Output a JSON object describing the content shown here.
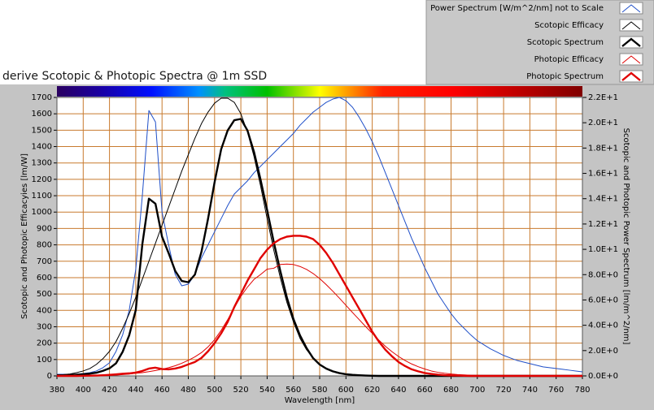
{
  "chart_data": {
    "type": "line",
    "title": "derive Scotopic & Photopic Spectra @ 1m SSD",
    "x_label": "Wavelength [nm]",
    "y_label": "Scotopic and Photopic Efficacyies [lm/W]",
    "y2_label": "Scotopic and Photopic Power Spectrum [lm/m^2/nm]",
    "xlim": [
      380,
      780
    ],
    "xticks": [
      380,
      400,
      420,
      440,
      460,
      480,
      500,
      520,
      540,
      560,
      580,
      600,
      620,
      640,
      660,
      680,
      700,
      720,
      740,
      760,
      780
    ],
    "ylim": [
      0,
      1700
    ],
    "yticks": [
      0,
      100,
      200,
      300,
      400,
      500,
      600,
      700,
      800,
      900,
      1000,
      1100,
      1200,
      1300,
      1400,
      1500,
      1600,
      1700
    ],
    "y2lim": [
      0,
      22
    ],
    "y2ticks": [
      {
        "value": 0,
        "label": "0.0E+0"
      },
      {
        "value": 2,
        "label": "2.0E+0"
      },
      {
        "value": 4,
        "label": "4.0E+0"
      },
      {
        "value": 6,
        "label": "6.0E+0"
      },
      {
        "value": 8,
        "label": "8.0E+0"
      },
      {
        "value": 10,
        "label": "1.0E+1"
      },
      {
        "value": 12,
        "label": "1.2E+1"
      },
      {
        "value": 14,
        "label": "1.4E+1"
      },
      {
        "value": 16,
        "label": "1.6E+1"
      },
      {
        "value": 18,
        "label": "1.8E+1"
      },
      {
        "value": 20,
        "label": "2.0E+1"
      },
      {
        "value": 22,
        "label": "2.2E+1"
      }
    ],
    "grid": true,
    "legend": "top-right",
    "x": [
      380,
      385,
      390,
      395,
      400,
      405,
      410,
      415,
      420,
      425,
      430,
      435,
      440,
      445,
      450,
      455,
      460,
      465,
      470,
      475,
      480,
      485,
      490,
      495,
      500,
      505,
      510,
      515,
      520,
      525,
      530,
      535,
      540,
      545,
      550,
      555,
      560,
      565,
      570,
      575,
      580,
      585,
      590,
      595,
      600,
      605,
      610,
      615,
      620,
      625,
      630,
      635,
      640,
      645,
      650,
      655,
      660,
      665,
      670,
      675,
      680,
      685,
      690,
      695,
      700,
      705,
      710,
      715,
      720,
      725,
      730,
      735,
      740,
      745,
      750,
      755,
      760,
      765,
      770,
      775,
      780
    ],
    "series": [
      {
        "name": "Power Spectrum [W/m^2/nm] not to Scale",
        "color": "#1f4fc8",
        "values": [
          10,
          10,
          10,
          10,
          15,
          20,
          30,
          50,
          80,
          150,
          250,
          400,
          650,
          1100,
          1620,
          1550,
          1000,
          800,
          620,
          550,
          560,
          620,
          720,
          800,
          880,
          960,
          1040,
          1110,
          1150,
          1190,
          1240,
          1280,
          1320,
          1360,
          1400,
          1440,
          1480,
          1530,
          1570,
          1610,
          1640,
          1670,
          1690,
          1700,
          1680,
          1640,
          1580,
          1510,
          1430,
          1340,
          1240,
          1140,
          1040,
          940,
          840,
          750,
          660,
          580,
          500,
          440,
          380,
          330,
          290,
          250,
          215,
          190,
          165,
          145,
          125,
          110,
          95,
          85,
          75,
          65,
          55,
          50,
          45,
          40,
          35,
          30,
          25
        ]
      },
      {
        "name": "Scotopic Efficacy",
        "color": "#000000",
        "values": [
          5,
          8,
          12,
          20,
          30,
          45,
          70,
          105,
          150,
          210,
          290,
          380,
          480,
          590,
          700,
          810,
          920,
          1030,
          1140,
          1250,
          1350,
          1450,
          1540,
          1610,
          1665,
          1695,
          1695,
          1670,
          1600,
          1490,
          1340,
          1160,
          960,
          770,
          600,
          450,
          330,
          230,
          160,
          110,
          70,
          45,
          30,
          20,
          12,
          8,
          5,
          3,
          2,
          1,
          1,
          0,
          0,
          0,
          0,
          0,
          0,
          0,
          0,
          0,
          0,
          0,
          0,
          0,
          0,
          0,
          0,
          0,
          0,
          0,
          0,
          0,
          0,
          0,
          0,
          0,
          0,
          0,
          0,
          0,
          0
        ]
      },
      {
        "name": "Scotopic Spectrum",
        "color": "#000000",
        "axis": "y2",
        "values": [
          0.05,
          0.05,
          0.07,
          0.1,
          0.13,
          0.18,
          0.25,
          0.4,
          0.6,
          1.0,
          1.9,
          3.2,
          5.2,
          10.4,
          14.0,
          13.6,
          11.0,
          9.7,
          8.3,
          7.5,
          7.4,
          8.0,
          9.8,
          12.4,
          15.3,
          17.9,
          19.4,
          20.2,
          20.3,
          19.4,
          17.7,
          15.5,
          13.1,
          10.6,
          8.3,
          6.2,
          4.5,
          3.2,
          2.2,
          1.4,
          0.9,
          0.58,
          0.36,
          0.22,
          0.13,
          0.08,
          0.05,
          0.03,
          0.01,
          0,
          0,
          0,
          0,
          0,
          0,
          0,
          0,
          0,
          0,
          0,
          0,
          0,
          0,
          0,
          0,
          0,
          0,
          0,
          0,
          0,
          0,
          0,
          0,
          0,
          0,
          0,
          0,
          0,
          0,
          0,
          0
        ]
      },
      {
        "name": "Photopic Efficacy",
        "color": "#e00000",
        "values": [
          0,
          0,
          0.1,
          0.1,
          0.3,
          0.4,
          0.8,
          1.5,
          3,
          5,
          8,
          11,
          16,
          20,
          26,
          33,
          41,
          50,
          62,
          77,
          95,
          116,
          142,
          177,
          221,
          278,
          344,
          415,
          485,
          542,
          589,
          619,
          652,
          657,
          680,
          683,
          680,
          668,
          650,
          625,
          594,
          557,
          517,
          475,
          431,
          387,
          344,
          301,
          260,
          219,
          181,
          148,
          119,
          94,
          73,
          56,
          42,
          30,
          22,
          16,
          12,
          8,
          6,
          4,
          3,
          2,
          1.4,
          1,
          0.7,
          0.5,
          0.3,
          0.2,
          0.15,
          0.1,
          0.07,
          0.05,
          0.03,
          0.02,
          0.01,
          0,
          0
        ]
      },
      {
        "name": "Photopic Spectrum",
        "color": "#e00000",
        "axis": "y2",
        "values": [
          0,
          0,
          0,
          0,
          0.01,
          0.02,
          0.03,
          0.05,
          0.08,
          0.12,
          0.17,
          0.2,
          0.26,
          0.39,
          0.58,
          0.65,
          0.54,
          0.52,
          0.58,
          0.71,
          0.91,
          1.1,
          1.42,
          1.94,
          2.59,
          3.36,
          4.27,
          5.44,
          6.47,
          7.51,
          8.41,
          9.32,
          9.97,
          10.48,
          10.81,
          11.0,
          11.07,
          11.07,
          11.0,
          10.81,
          10.35,
          9.71,
          8.93,
          8.02,
          7.12,
          6.21,
          5.31,
          4.4,
          3.49,
          2.72,
          2.07,
          1.55,
          1.1,
          0.78,
          0.52,
          0.36,
          0.23,
          0.16,
          0.1,
          0.06,
          0.04,
          0.03,
          0.01,
          0,
          0,
          0,
          0,
          0,
          0,
          0,
          0,
          0,
          0,
          0,
          0,
          0,
          0,
          0,
          0,
          0,
          0
        ]
      }
    ]
  }
}
